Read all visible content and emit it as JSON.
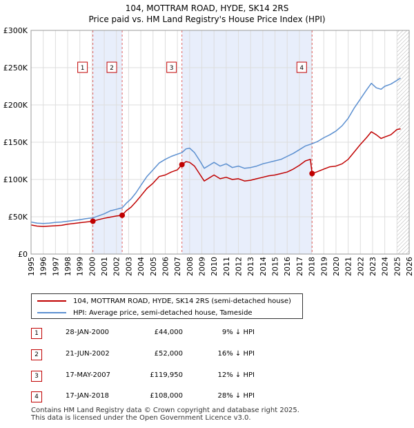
{
  "chart_data": {
    "type": "line",
    "title": "104, MOTTRAM ROAD, HYDE, SK14 2RS",
    "subtitle": "Price paid vs. HM Land Registry's House Price Index (HPI)",
    "xlim": [
      1995,
      2026
    ],
    "ylim": [
      0,
      300000
    ],
    "yticks": [
      {
        "value": 0,
        "label": "£0"
      },
      {
        "value": 50000,
        "label": "£50K"
      },
      {
        "value": 100000,
        "label": "£100K"
      },
      {
        "value": 150000,
        "label": "£150K"
      },
      {
        "value": 200000,
        "label": "£200K"
      },
      {
        "value": 250000,
        "label": "£250K"
      },
      {
        "value": 300000,
        "label": "£300K"
      }
    ],
    "xticks": [
      "1995",
      "1996",
      "1997",
      "1998",
      "1999",
      "2000",
      "2001",
      "2002",
      "2003",
      "2004",
      "2005",
      "2006",
      "2007",
      "2008",
      "2009",
      "2010",
      "2011",
      "2012",
      "2013",
      "2014",
      "2015",
      "2016",
      "2017",
      "2018",
      "2019",
      "2020",
      "2021",
      "2022",
      "2023",
      "2024",
      "2025",
      "2026"
    ],
    "grid": true,
    "shaded_periods": [
      [
        2000.07,
        2002.47
      ],
      [
        2007.37,
        2018.04
      ]
    ],
    "future_hatch_from": 2025.0,
    "series": [
      {
        "name": "104, MOTTRAM ROAD, HYDE, SK14 2RS (semi-detached house)",
        "color": "#c00000",
        "points": [
          [
            1995.0,
            39000
          ],
          [
            1995.5,
            37500
          ],
          [
            1996.0,
            37000
          ],
          [
            1996.5,
            37500
          ],
          [
            1997.0,
            38000
          ],
          [
            1997.5,
            38500
          ],
          [
            1998.0,
            40000
          ],
          [
            1998.5,
            41000
          ],
          [
            1999.0,
            42000
          ],
          [
            1999.5,
            43000
          ],
          [
            2000.07,
            44000
          ],
          [
            2000.5,
            46000
          ],
          [
            2001.0,
            48000
          ],
          [
            2001.5,
            49500
          ],
          [
            2002.0,
            51000
          ],
          [
            2002.47,
            52000
          ],
          [
            2002.8,
            58000
          ],
          [
            2003.2,
            63000
          ],
          [
            2003.6,
            70000
          ],
          [
            2004.0,
            78000
          ],
          [
            2004.5,
            88000
          ],
          [
            2005.0,
            95000
          ],
          [
            2005.5,
            104000
          ],
          [
            2006.0,
            106000
          ],
          [
            2006.5,
            110000
          ],
          [
            2007.0,
            113000
          ],
          [
            2007.37,
            119950
          ],
          [
            2007.7,
            124000
          ],
          [
            2008.0,
            123000
          ],
          [
            2008.4,
            118000
          ],
          [
            2008.8,
            108000
          ],
          [
            2009.2,
            98000
          ],
          [
            2009.6,
            102000
          ],
          [
            2010.0,
            106000
          ],
          [
            2010.5,
            101000
          ],
          [
            2011.0,
            103000
          ],
          [
            2011.5,
            100000
          ],
          [
            2012.0,
            101000
          ],
          [
            2012.5,
            98000
          ],
          [
            2013.0,
            99000
          ],
          [
            2013.5,
            101000
          ],
          [
            2014.0,
            103000
          ],
          [
            2014.5,
            105000
          ],
          [
            2015.0,
            106000
          ],
          [
            2015.5,
            108000
          ],
          [
            2016.0,
            110000
          ],
          [
            2016.5,
            114000
          ],
          [
            2017.0,
            119000
          ],
          [
            2017.5,
            125000
          ],
          [
            2017.9,
            127000
          ],
          [
            2018.04,
            108000
          ],
          [
            2018.4,
            110000
          ],
          [
            2019.0,
            114000
          ],
          [
            2019.5,
            117000
          ],
          [
            2020.0,
            118000
          ],
          [
            2020.5,
            121000
          ],
          [
            2021.0,
            127000
          ],
          [
            2021.5,
            137000
          ],
          [
            2022.0,
            147000
          ],
          [
            2022.5,
            156000
          ],
          [
            2022.9,
            164000
          ],
          [
            2023.3,
            160000
          ],
          [
            2023.7,
            155000
          ],
          [
            2024.0,
            157000
          ],
          [
            2024.5,
            160000
          ],
          [
            2025.0,
            167000
          ],
          [
            2025.3,
            168000
          ]
        ]
      },
      {
        "name": "HPI: Average price, semi-detached house, Tameside",
        "color": "#5b8fd0",
        "points": [
          [
            1995.0,
            43000
          ],
          [
            1995.5,
            41500
          ],
          [
            1996.0,
            41000
          ],
          [
            1996.5,
            41500
          ],
          [
            1997.0,
            42500
          ],
          [
            1997.5,
            43000
          ],
          [
            1998.0,
            44000
          ],
          [
            1998.5,
            45000
          ],
          [
            1999.0,
            46000
          ],
          [
            1999.5,
            47500
          ],
          [
            2000.07,
            48500
          ],
          [
            2000.5,
            51000
          ],
          [
            2001.0,
            54000
          ],
          [
            2001.5,
            58000
          ],
          [
            2002.0,
            60000
          ],
          [
            2002.47,
            62000
          ],
          [
            2002.8,
            68000
          ],
          [
            2003.2,
            74000
          ],
          [
            2003.6,
            82000
          ],
          [
            2004.0,
            92000
          ],
          [
            2004.5,
            104000
          ],
          [
            2005.0,
            113000
          ],
          [
            2005.5,
            122000
          ],
          [
            2006.0,
            127000
          ],
          [
            2006.5,
            131000
          ],
          [
            2007.0,
            134000
          ],
          [
            2007.37,
            136000
          ],
          [
            2007.7,
            141000
          ],
          [
            2008.0,
            142000
          ],
          [
            2008.4,
            136000
          ],
          [
            2008.8,
            126000
          ],
          [
            2009.2,
            115000
          ],
          [
            2009.6,
            119000
          ],
          [
            2010.0,
            123000
          ],
          [
            2010.5,
            118000
          ],
          [
            2011.0,
            121000
          ],
          [
            2011.5,
            116000
          ],
          [
            2012.0,
            118000
          ],
          [
            2012.5,
            115000
          ],
          [
            2013.0,
            116000
          ],
          [
            2013.5,
            118000
          ],
          [
            2014.0,
            121000
          ],
          [
            2014.5,
            123000
          ],
          [
            2015.0,
            125000
          ],
          [
            2015.5,
            127000
          ],
          [
            2016.0,
            131000
          ],
          [
            2016.5,
            135000
          ],
          [
            2017.0,
            140000
          ],
          [
            2017.5,
            145000
          ],
          [
            2018.04,
            148000
          ],
          [
            2018.5,
            151000
          ],
          [
            2019.0,
            156000
          ],
          [
            2019.5,
            160000
          ],
          [
            2020.0,
            165000
          ],
          [
            2020.5,
            172000
          ],
          [
            2021.0,
            182000
          ],
          [
            2021.5,
            196000
          ],
          [
            2022.0,
            208000
          ],
          [
            2022.5,
            220000
          ],
          [
            2022.9,
            229000
          ],
          [
            2023.3,
            223000
          ],
          [
            2023.7,
            221000
          ],
          [
            2024.0,
            225000
          ],
          [
            2024.5,
            228000
          ],
          [
            2025.0,
            233000
          ],
          [
            2025.3,
            236000
          ]
        ]
      }
    ],
    "sales": [
      {
        "n": "1",
        "date": "28-JAN-2000",
        "price": "£44,000",
        "hpi": "9% ↓ HPI",
        "x": 2000.07,
        "y": 44000
      },
      {
        "n": "2",
        "date": "21-JUN-2002",
        "price": "£52,000",
        "hpi": "16% ↓ HPI",
        "x": 2002.47,
        "y": 52000
      },
      {
        "n": "3",
        "date": "17-MAY-2007",
        "price": "£119,950",
        "hpi": "12% ↓ HPI",
        "x": 2007.37,
        "y": 119950
      },
      {
        "n": "4",
        "date": "17-JAN-2018",
        "price": "£108,000",
        "hpi": "28% ↓ HPI",
        "x": 2018.04,
        "y": 108000
      }
    ]
  },
  "footer": {
    "line1": "Contains HM Land Registry data © Crown copyright and database right 2025.",
    "line2": "This data is licensed under the Open Government Licence v3.0."
  }
}
